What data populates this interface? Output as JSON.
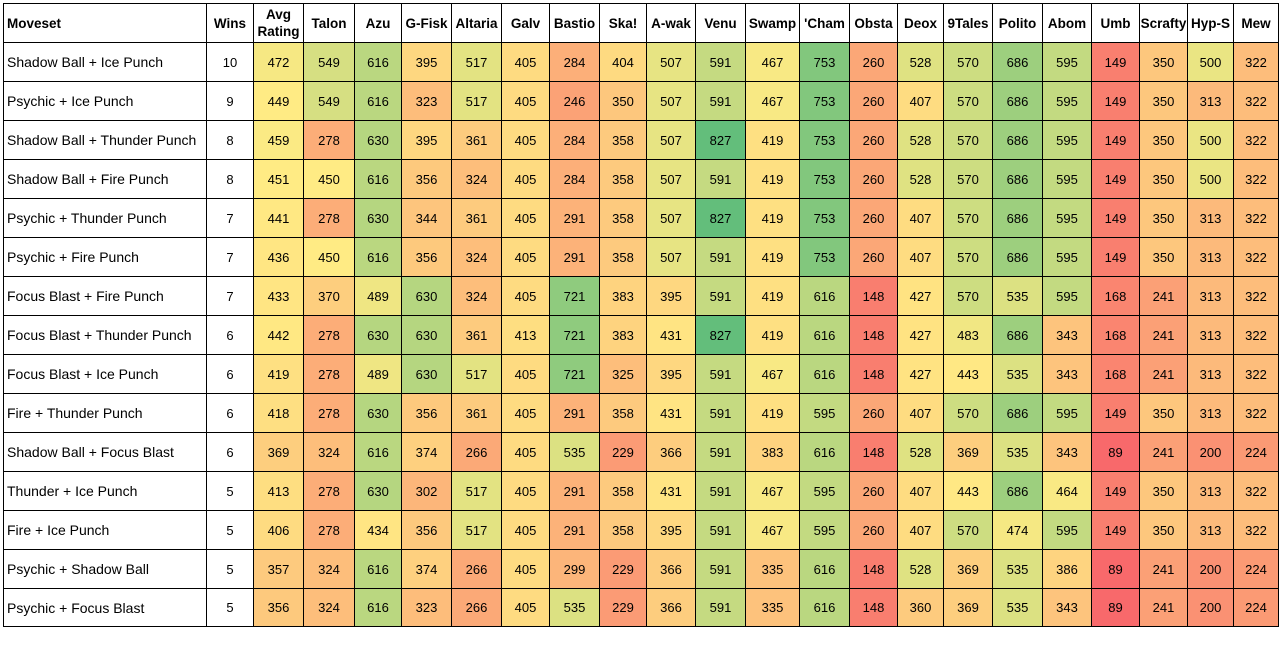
{
  "chart_data": {
    "type": "table",
    "columns": [
      "Moveset",
      "Wins",
      "Avg Rating",
      "Talon",
      "Azu",
      "G-Fisk",
      "Altaria",
      "Galv",
      "Bastio",
      "Ska!",
      "A-wak",
      "Venu",
      "Swamp",
      "'Cham",
      "Obsta",
      "Deox",
      "9Tales",
      "Polito",
      "Abom",
      "Umb",
      "Scrafty",
      "Hyp-S",
      "Mew"
    ],
    "rows": [
      {
        "moveset": "Shadow Ball + Ice Punch",
        "wins": 10,
        "values": [
          472,
          549,
          616,
          395,
          517,
          405,
          284,
          404,
          507,
          591,
          467,
          753,
          260,
          528,
          570,
          686,
          595,
          149,
          350,
          500,
          322
        ]
      },
      {
        "moveset": "Psychic + Ice Punch",
        "wins": 9,
        "values": [
          449,
          549,
          616,
          323,
          517,
          405,
          246,
          350,
          507,
          591,
          467,
          753,
          260,
          407,
          570,
          686,
          595,
          149,
          350,
          313,
          322
        ]
      },
      {
        "moveset": "Shadow Ball + Thunder Punch",
        "wins": 8,
        "values": [
          459,
          278,
          630,
          395,
          361,
          405,
          284,
          358,
          507,
          827,
          419,
          753,
          260,
          528,
          570,
          686,
          595,
          149,
          350,
          500,
          322
        ]
      },
      {
        "moveset": "Shadow Ball + Fire Punch",
        "wins": 8,
        "values": [
          451,
          450,
          616,
          356,
          324,
          405,
          284,
          358,
          507,
          591,
          419,
          753,
          260,
          528,
          570,
          686,
          595,
          149,
          350,
          500,
          322
        ]
      },
      {
        "moveset": "Psychic + Thunder Punch",
        "wins": 7,
        "values": [
          441,
          278,
          630,
          344,
          361,
          405,
          291,
          358,
          507,
          827,
          419,
          753,
          260,
          407,
          570,
          686,
          595,
          149,
          350,
          313,
          322
        ]
      },
      {
        "moveset": "Psychic + Fire Punch",
        "wins": 7,
        "values": [
          436,
          450,
          616,
          356,
          324,
          405,
          291,
          358,
          507,
          591,
          419,
          753,
          260,
          407,
          570,
          686,
          595,
          149,
          350,
          313,
          322
        ]
      },
      {
        "moveset": "Focus Blast + Fire Punch",
        "wins": 7,
        "values": [
          433,
          370,
          489,
          630,
          324,
          405,
          721,
          383,
          395,
          591,
          419,
          616,
          148,
          427,
          570,
          535,
          595,
          168,
          241,
          313,
          322
        ]
      },
      {
        "moveset": "Focus Blast + Thunder Punch",
        "wins": 6,
        "values": [
          442,
          278,
          630,
          630,
          361,
          413,
          721,
          383,
          431,
          827,
          419,
          616,
          148,
          427,
          483,
          686,
          343,
          168,
          241,
          313,
          322
        ]
      },
      {
        "moveset": "Focus Blast + Ice Punch",
        "wins": 6,
        "values": [
          419,
          278,
          489,
          630,
          517,
          405,
          721,
          325,
          395,
          591,
          467,
          616,
          148,
          427,
          443,
          535,
          343,
          168,
          241,
          313,
          322
        ]
      },
      {
        "moveset": "Fire + Thunder Punch",
        "wins": 6,
        "values": [
          418,
          278,
          630,
          356,
          361,
          405,
          291,
          358,
          431,
          591,
          419,
          595,
          260,
          407,
          570,
          686,
          595,
          149,
          350,
          313,
          322
        ]
      },
      {
        "moveset": "Shadow Ball + Focus Blast",
        "wins": 6,
        "values": [
          369,
          324,
          616,
          374,
          266,
          405,
          535,
          229,
          366,
          591,
          383,
          616,
          148,
          528,
          369,
          535,
          343,
          89,
          241,
          200,
          224
        ]
      },
      {
        "moveset": "Thunder + Ice Punch",
        "wins": 5,
        "values": [
          413,
          278,
          630,
          302,
          517,
          405,
          291,
          358,
          431,
          591,
          467,
          595,
          260,
          407,
          443,
          686,
          464,
          149,
          350,
          313,
          322
        ]
      },
      {
        "moveset": "Fire + Ice Punch",
        "wins": 5,
        "values": [
          406,
          278,
          434,
          356,
          517,
          405,
          291,
          358,
          395,
          591,
          467,
          595,
          260,
          407,
          570,
          474,
          595,
          149,
          350,
          313,
          322
        ]
      },
      {
        "moveset": "Psychic + Shadow Ball",
        "wins": 5,
        "values": [
          357,
          324,
          616,
          374,
          266,
          405,
          299,
          229,
          366,
          591,
          335,
          616,
          148,
          528,
          369,
          535,
          386,
          89,
          241,
          200,
          224
        ]
      },
      {
        "moveset": "Psychic + Focus Blast",
        "wins": 5,
        "values": [
          356,
          324,
          616,
          323,
          266,
          405,
          535,
          229,
          366,
          591,
          335,
          616,
          148,
          360,
          369,
          535,
          343,
          89,
          241,
          200,
          224
        ]
      }
    ],
    "color_scale": {
      "low": "#f8696b",
      "mid": "#ffeb84",
      "high": "#63be7b"
    }
  }
}
